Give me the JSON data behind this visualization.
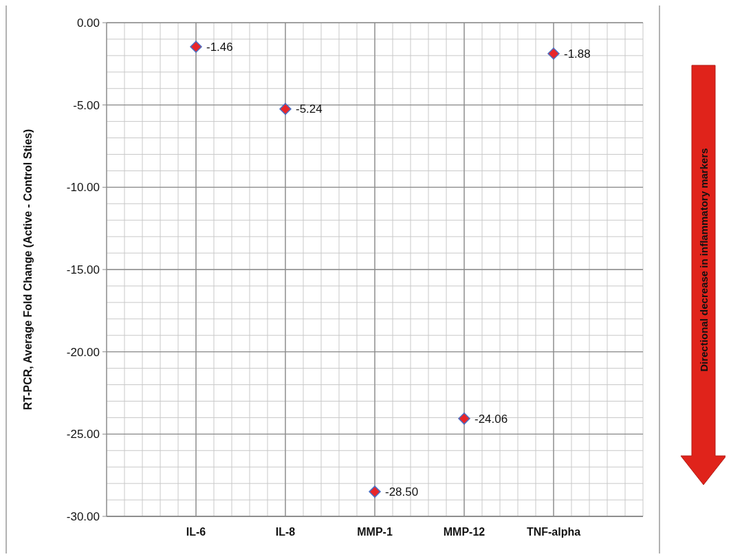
{
  "chart_data": {
    "type": "scatter",
    "ylabel": "RT-PCR, Average  Fold Change (Active - Control Sties)",
    "categories": [
      "IL-6",
      "IL-8",
      "MMP-1",
      "MMP-12",
      "TNF-alpha"
    ],
    "series": [
      {
        "color": "#e8262a",
        "values": [
          -1.46,
          -5.24,
          -28.5,
          -24.06,
          -1.88
        ],
        "value_labels": [
          "-1.46",
          "-5.24",
          "-28.50",
          "-24.06",
          "-1.88"
        ]
      }
    ],
    "ylim": [
      -30,
      0
    ],
    "yticks": [
      {
        "value": 0,
        "label": "0.00"
      },
      {
        "value": -5,
        "label": "-5.00"
      },
      {
        "value": -10,
        "label": "-10.00"
      },
      {
        "value": -15,
        "label": "-15.00"
      },
      {
        "value": -20,
        "label": "-20.00"
      },
      {
        "value": -25,
        "label": "-25.00"
      },
      {
        "value": -30,
        "label": "-30.00"
      }
    ],
    "grid": true,
    "marker": "diamond",
    "annotations": [
      "Directional decrease in inflammatory markers"
    ]
  }
}
